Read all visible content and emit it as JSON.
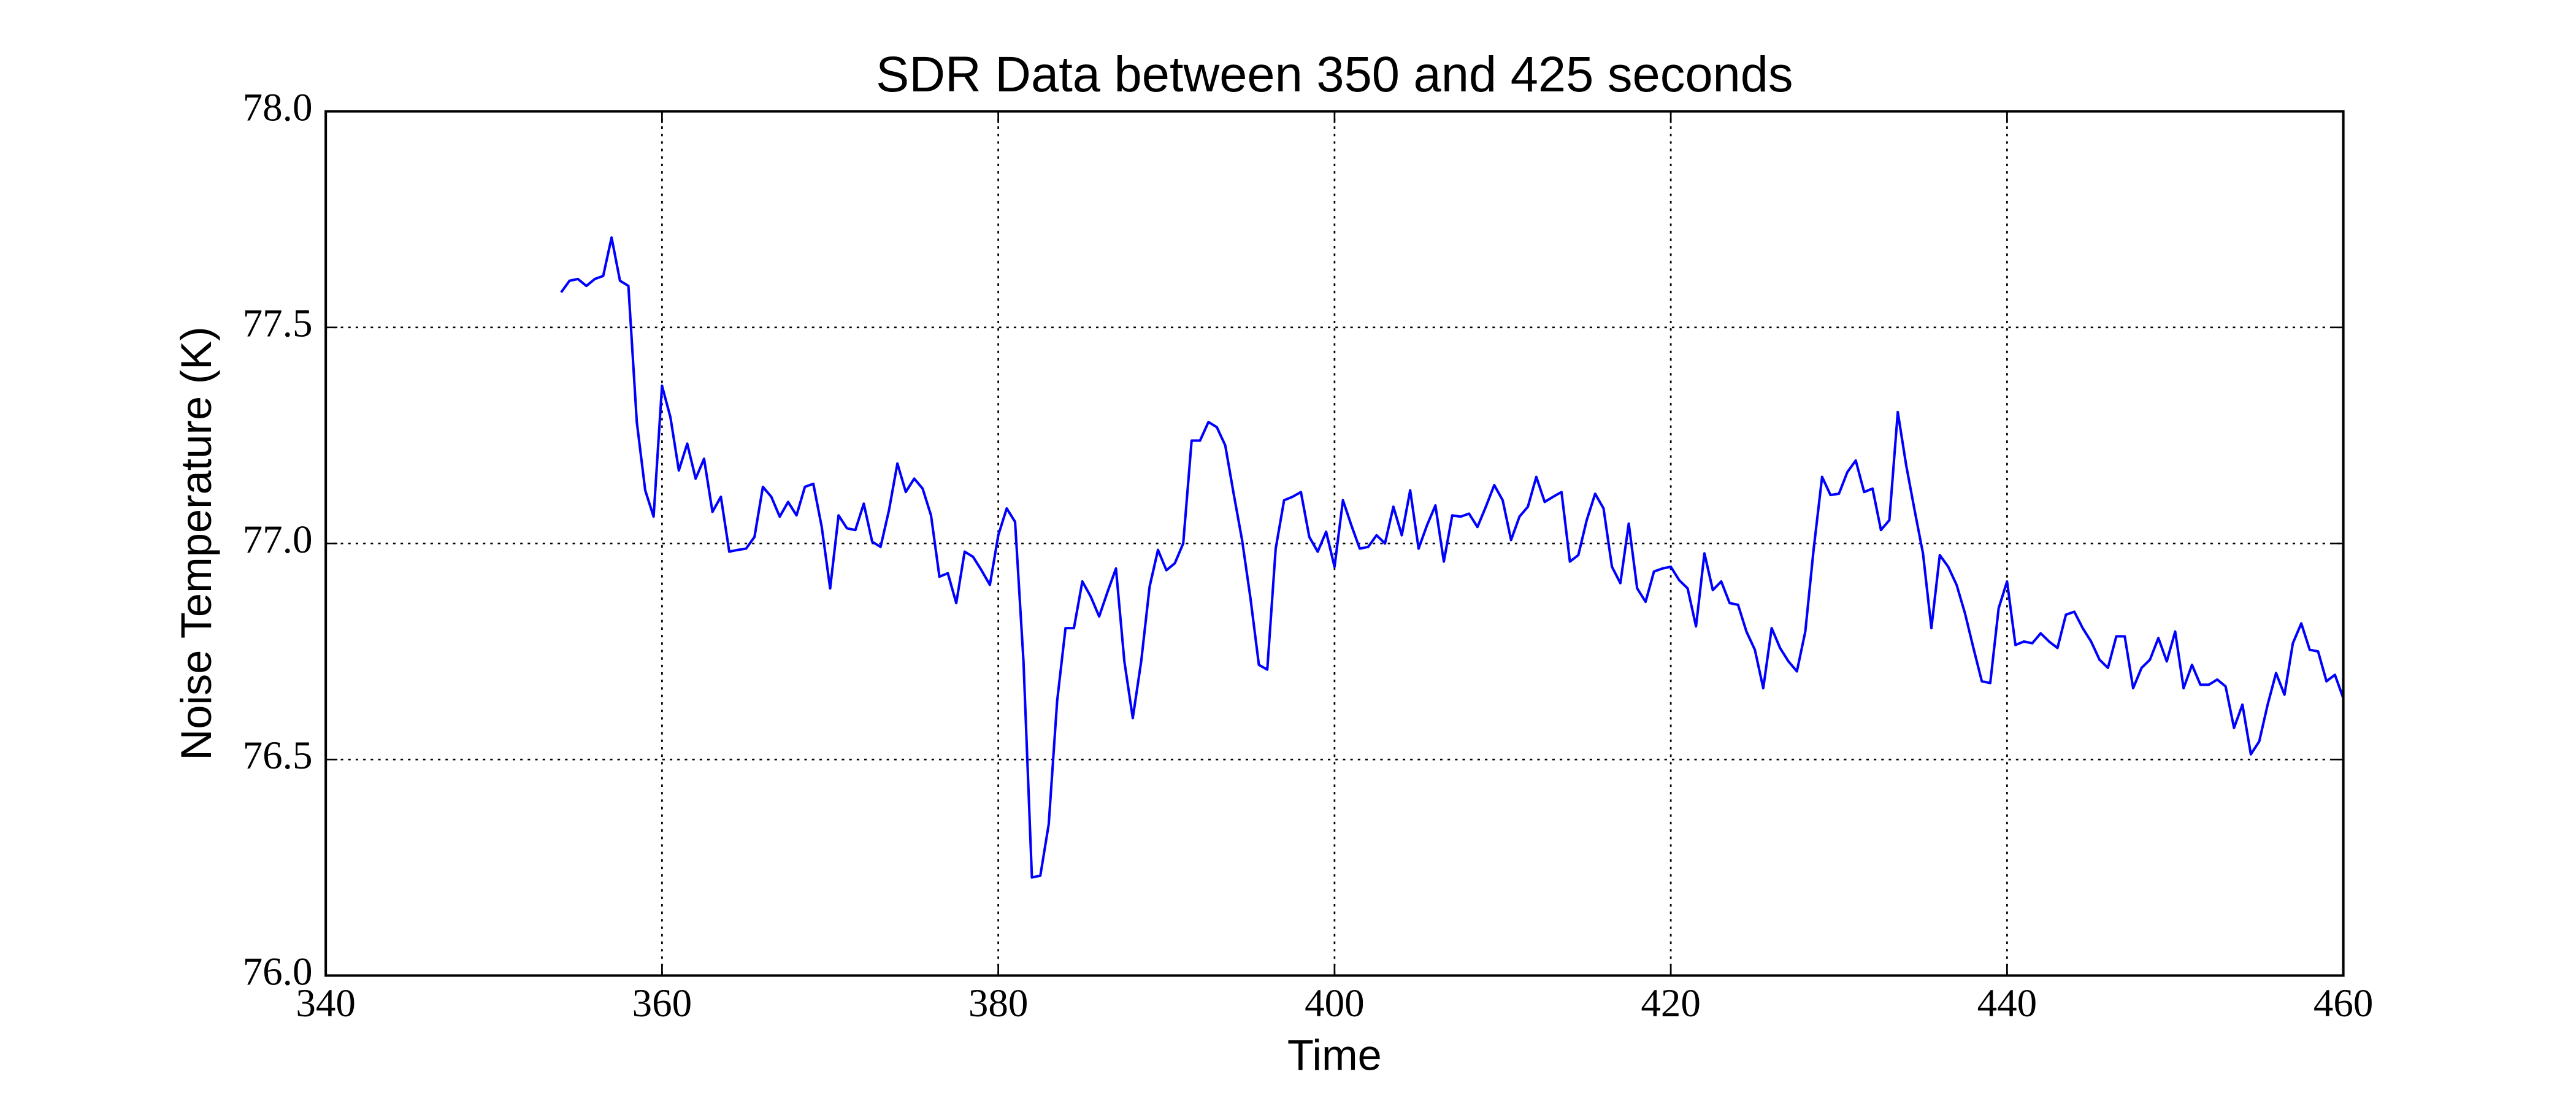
{
  "chart_data": {
    "type": "line",
    "title": "SDR Data between 350 and 425 seconds",
    "x_label": "Time",
    "y_label": "Noise Temperature (K)",
    "xlim": [
      340,
      460
    ],
    "ylim": [
      76.0,
      78.0
    ],
    "xticks": [
      340,
      360,
      380,
      400,
      420,
      440,
      460
    ],
    "yticks": [
      {
        "value": 76.0,
        "label": "76.0"
      },
      76.5,
      {
        "value": 77.0,
        "label": "77.0"
      },
      77.5,
      {
        "value": 78.0,
        "label": "78.0"
      }
    ],
    "grid": true,
    "x": [
      354,
      354.5,
      355,
      355.5,
      356,
      356.5,
      357,
      357.5,
      358,
      358.5,
      359,
      359.5,
      360,
      360.5,
      361,
      361.5,
      362,
      362.5,
      363,
      363.5,
      364,
      364.5,
      365,
      365.5,
      366,
      366.5,
      367,
      367.5,
      368,
      368.5,
      369,
      369.5,
      370,
      370.5,
      371,
      371.5,
      372,
      372.5,
      373,
      373.5,
      374,
      374.5,
      375,
      375.5,
      376,
      376.5,
      377,
      377.5,
      378,
      378.5,
      379,
      379.5,
      380,
      380.5,
      381,
      381.5,
      382,
      382.5,
      383,
      383.5,
      384,
      384.5,
      385,
      385.5,
      386,
      386.5,
      387,
      387.5,
      388,
      388.5,
      389,
      389.5,
      390,
      390.5,
      391,
      391.5,
      392,
      392.5,
      393,
      393.5,
      394,
      394.5,
      395,
      395.5,
      396,
      396.5,
      397,
      397.5,
      398,
      398.5,
      399,
      399.5,
      400,
      400.5,
      401,
      401.5,
      402,
      402.5,
      403,
      403.5,
      404,
      404.5,
      405,
      405.5,
      406,
      406.5,
      407,
      407.5,
      408,
      408.5,
      409,
      409.5,
      410,
      410.5,
      411,
      411.5,
      412,
      412.5,
      413,
      413.5,
      414,
      414.5,
      415,
      415.5,
      416,
      416.5,
      417,
      417.5,
      418,
      418.5,
      419,
      419.5,
      420,
      420.5,
      421,
      421.5,
      422,
      422.5,
      423,
      423.5,
      424,
      424.5,
      425,
      425.5,
      426,
      426.5,
      427,
      427.5,
      428,
      428.5,
      429,
      429.5,
      430,
      430.5,
      431,
      431.5,
      432,
      432.5,
      433,
      433.5,
      434,
      434.5,
      435,
      435.5,
      436,
      436.5,
      437,
      437.5,
      438,
      438.5,
      439,
      439.5,
      440,
      440.5,
      441,
      441.5,
      442,
      442.5,
      443,
      443.5,
      444,
      444.5,
      445,
      445.5,
      446,
      446.5,
      447,
      447.5,
      448,
      448.5,
      449,
      449.5,
      450,
      450.5,
      451,
      451.5,
      452,
      452.5,
      453,
      453.5,
      454,
      454.5,
      455,
      455.5,
      456,
      456.5,
      457,
      457.5,
      458,
      458.5,
      459,
      459.5,
      460
    ],
    "series": [
      {
        "color": "#0000ff",
        "values": [
          77.581,
          77.608,
          77.612,
          77.596,
          77.612,
          77.619,
          77.708,
          77.608,
          77.596,
          77.281,
          77.123,
          77.062,
          77.365,
          77.292,
          77.169,
          77.231,
          77.15,
          77.196,
          77.073,
          77.108,
          76.981,
          76.985,
          76.988,
          77.015,
          77.131,
          77.108,
          77.062,
          77.096,
          77.065,
          77.131,
          77.138,
          77.038,
          76.896,
          77.065,
          77.035,
          77.031,
          77.092,
          77.004,
          76.992,
          77.077,
          77.185,
          77.119,
          77.15,
          77.127,
          77.065,
          76.923,
          76.931,
          76.862,
          76.981,
          76.969,
          76.938,
          76.904,
          77.019,
          77.081,
          77.05,
          76.727,
          76.227,
          76.231,
          76.35,
          76.635,
          76.804,
          76.804,
          76.912,
          76.877,
          76.831,
          76.888,
          76.942,
          76.727,
          76.596,
          76.727,
          76.9,
          76.985,
          76.938,
          76.954,
          77.0,
          77.238,
          77.238,
          77.281,
          77.269,
          77.227,
          77.115,
          77.008,
          76.873,
          76.719,
          76.708,
          76.988,
          77.1,
          77.108,
          77.119,
          77.015,
          76.981,
          77.027,
          76.946,
          77.1,
          77.042,
          76.988,
          76.992,
          77.019,
          77.0,
          77.085,
          77.019,
          77.123,
          76.988,
          77.042,
          77.088,
          76.958,
          77.065,
          77.062,
          77.069,
          77.038,
          77.085,
          77.135,
          77.1,
          77.008,
          77.062,
          77.085,
          77.154,
          77.096,
          77.108,
          77.119,
          76.958,
          76.973,
          77.054,
          77.115,
          77.081,
          76.946,
          76.908,
          77.046,
          76.896,
          76.865,
          76.935,
          76.942,
          76.946,
          76.915,
          76.896,
          76.808,
          76.977,
          76.892,
          76.912,
          76.862,
          76.858,
          76.796,
          76.754,
          76.665,
          76.804,
          76.758,
          76.727,
          76.704,
          76.796,
          76.988,
          77.154,
          77.112,
          77.115,
          77.165,
          77.192,
          77.119,
          77.127,
          77.031,
          77.054,
          77.304,
          77.181,
          77.077,
          76.977,
          76.804,
          76.973,
          76.946,
          76.904,
          76.838,
          76.758,
          76.681,
          76.677,
          76.85,
          76.912,
          76.765,
          76.773,
          76.769,
          76.792,
          76.773,
          76.758,
          76.835,
          76.842,
          76.804,
          76.773,
          76.731,
          76.712,
          76.785,
          76.785,
          76.665,
          76.712,
          76.731,
          76.781,
          76.727,
          76.796,
          76.665,
          76.719,
          76.673,
          76.673,
          76.685,
          76.669,
          76.573,
          76.627,
          76.512,
          76.542,
          76.627,
          76.7,
          76.65,
          76.769,
          76.815,
          76.754,
          76.75,
          76.681,
          76.696,
          76.642
        ]
      }
    ]
  }
}
